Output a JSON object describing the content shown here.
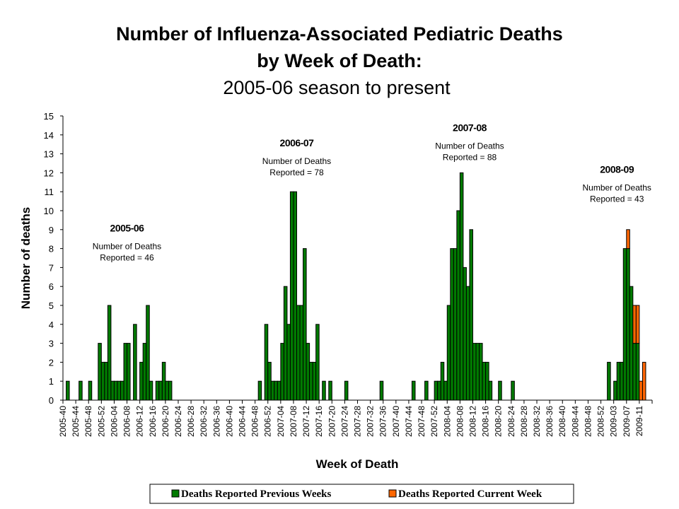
{
  "chart_data": {
    "type": "bar",
    "stacked": true,
    "title": [
      "Number of Influenza-Associated Pediatric Deaths",
      "by Week of Death:",
      "2005-06 season to present"
    ],
    "xlabel": "Week of Death",
    "ylabel": "Number of deaths",
    "ylim": [
      0,
      15
    ],
    "yticks": [
      0,
      1,
      2,
      3,
      4,
      5,
      6,
      7,
      8,
      9,
      10,
      11,
      12,
      13,
      14,
      15
    ],
    "grid": false,
    "legend_position": "bottom",
    "x_start_week": "2005-40",
    "week_count": 184,
    "week_index_note": "index 0 = 2005-40; 2008 has week 53",
    "tick_labels": [
      "2005-40",
      "2005-44",
      "2005-48",
      "2005-52",
      "2006-04",
      "2006-08",
      "2006-12",
      "2006-16",
      "2006-20",
      "2006-24",
      "2006-28",
      "2006-32",
      "2006-36",
      "2006-40",
      "2006-44",
      "2006-48",
      "2006-52",
      "2007-04",
      "2007-08",
      "2007-12",
      "2007-16",
      "2007-20",
      "2007-24",
      "2007-28",
      "2007-32",
      "2007-36",
      "2007-40",
      "2007-44",
      "2007-48",
      "2007-52",
      "2008-04",
      "2008-08",
      "2008-12",
      "2008-16",
      "2008-20",
      "2008-24",
      "2008-28",
      "2008-32",
      "2008-36",
      "2008-40",
      "2008-44",
      "2008-48",
      "2008-52",
      "2009-03",
      "2009-07",
      "2009-11"
    ],
    "series": [
      {
        "name": "Deaths Reported Previous Weeks",
        "color": "#007A00",
        "points": [
          {
            "week": "2005-41",
            "idx": 1,
            "value": 1
          },
          {
            "week": "2005-45",
            "idx": 5,
            "value": 1
          },
          {
            "week": "2005-48",
            "idx": 8,
            "value": 1
          },
          {
            "week": "2005-51",
            "idx": 11,
            "value": 3
          },
          {
            "week": "2005-52",
            "idx": 12,
            "value": 2
          },
          {
            "week": "2006-01",
            "idx": 13,
            "value": 2
          },
          {
            "week": "2006-02",
            "idx": 14,
            "value": 5
          },
          {
            "week": "2006-03",
            "idx": 15,
            "value": 1
          },
          {
            "week": "2006-04",
            "idx": 16,
            "value": 1
          },
          {
            "week": "2006-05",
            "idx": 17,
            "value": 1
          },
          {
            "week": "2006-06",
            "idx": 18,
            "value": 1
          },
          {
            "week": "2006-07",
            "idx": 19,
            "value": 3
          },
          {
            "week": "2006-08",
            "idx": 20,
            "value": 3
          },
          {
            "week": "2006-10",
            "idx": 22,
            "value": 4
          },
          {
            "week": "2006-12",
            "idx": 24,
            "value": 2
          },
          {
            "week": "2006-13",
            "idx": 25,
            "value": 3
          },
          {
            "week": "2006-14",
            "idx": 26,
            "value": 5
          },
          {
            "week": "2006-15",
            "idx": 27,
            "value": 1
          },
          {
            "week": "2006-17",
            "idx": 29,
            "value": 1
          },
          {
            "week": "2006-18",
            "idx": 30,
            "value": 1
          },
          {
            "week": "2006-19",
            "idx": 31,
            "value": 2
          },
          {
            "week": "2006-20",
            "idx": 32,
            "value": 1
          },
          {
            "week": "2006-21",
            "idx": 33,
            "value": 1
          },
          {
            "week": "2006-49",
            "idx": 61,
            "value": 1
          },
          {
            "week": "2006-51",
            "idx": 63,
            "value": 4
          },
          {
            "week": "2006-52",
            "idx": 64,
            "value": 2
          },
          {
            "week": "2007-01",
            "idx": 65,
            "value": 1
          },
          {
            "week": "2007-02",
            "idx": 66,
            "value": 1
          },
          {
            "week": "2007-03",
            "idx": 67,
            "value": 1
          },
          {
            "week": "2007-04",
            "idx": 68,
            "value": 3
          },
          {
            "week": "2007-05",
            "idx": 69,
            "value": 6
          },
          {
            "week": "2007-06",
            "idx": 70,
            "value": 4
          },
          {
            "week": "2007-07",
            "idx": 71,
            "value": 11
          },
          {
            "week": "2007-08",
            "idx": 72,
            "value": 11
          },
          {
            "week": "2007-09",
            "idx": 73,
            "value": 5
          },
          {
            "week": "2007-10",
            "idx": 74,
            "value": 5
          },
          {
            "week": "2007-11",
            "idx": 75,
            "value": 8
          },
          {
            "week": "2007-12",
            "idx": 76,
            "value": 3
          },
          {
            "week": "2007-13",
            "idx": 77,
            "value": 2
          },
          {
            "week": "2007-14",
            "idx": 78,
            "value": 2
          },
          {
            "week": "2007-15",
            "idx": 79,
            "value": 4
          },
          {
            "week": "2007-17",
            "idx": 81,
            "value": 1
          },
          {
            "week": "2007-19",
            "idx": 83,
            "value": 1
          },
          {
            "week": "2007-24",
            "idx": 88,
            "value": 1
          },
          {
            "week": "2007-35",
            "idx": 99,
            "value": 1
          },
          {
            "week": "2007-45",
            "idx": 109,
            "value": 1
          },
          {
            "week": "2007-49",
            "idx": 113,
            "value": 1
          },
          {
            "week": "2007-52",
            "idx": 116,
            "value": 1
          },
          {
            "week": "2008-01",
            "idx": 117,
            "value": 1
          },
          {
            "week": "2008-02",
            "idx": 118,
            "value": 2
          },
          {
            "week": "2008-03",
            "idx": 119,
            "value": 1
          },
          {
            "week": "2008-04",
            "idx": 120,
            "value": 5
          },
          {
            "week": "2008-05",
            "idx": 121,
            "value": 8
          },
          {
            "week": "2008-06",
            "idx": 122,
            "value": 8
          },
          {
            "week": "2008-07",
            "idx": 123,
            "value": 10
          },
          {
            "week": "2008-08",
            "idx": 124,
            "value": 12
          },
          {
            "week": "2008-09",
            "idx": 125,
            "value": 7
          },
          {
            "week": "2008-10",
            "idx": 126,
            "value": 6
          },
          {
            "week": "2008-11",
            "idx": 127,
            "value": 9
          },
          {
            "week": "2008-12",
            "idx": 128,
            "value": 3
          },
          {
            "week": "2008-13",
            "idx": 129,
            "value": 3
          },
          {
            "week": "2008-14",
            "idx": 130,
            "value": 3
          },
          {
            "week": "2008-15",
            "idx": 131,
            "value": 2
          },
          {
            "week": "2008-16",
            "idx": 132,
            "value": 2
          },
          {
            "week": "2008-17",
            "idx": 133,
            "value": 1
          },
          {
            "week": "2008-20",
            "idx": 136,
            "value": 1
          },
          {
            "week": "2008-24",
            "idx": 140,
            "value": 1
          },
          {
            "week": "2009-01",
            "idx": 170,
            "value": 2
          },
          {
            "week": "2009-03",
            "idx": 172,
            "value": 1
          },
          {
            "week": "2009-04",
            "idx": 173,
            "value": 2
          },
          {
            "week": "2009-05",
            "idx": 174,
            "value": 2
          },
          {
            "week": "2009-06",
            "idx": 175,
            "value": 8
          },
          {
            "week": "2009-07",
            "idx": 176,
            "value": 8
          },
          {
            "week": "2009-08",
            "idx": 177,
            "value": 6
          },
          {
            "week": "2009-09",
            "idx": 178,
            "value": 3
          },
          {
            "week": "2009-10",
            "idx": 179,
            "value": 3
          }
        ]
      },
      {
        "name": "Deaths Reported Current Week",
        "color": "#FF6600",
        "points": [
          {
            "week": "2009-07",
            "idx": 176,
            "value": 1
          },
          {
            "week": "2009-09",
            "idx": 178,
            "value": 2
          },
          {
            "week": "2009-10",
            "idx": 179,
            "value": 2
          },
          {
            "week": "2009-11",
            "idx": 180,
            "value": 1
          },
          {
            "week": "2009-12",
            "idx": 181,
            "value": 2
          }
        ]
      }
    ],
    "annotations": [
      {
        "season": "2005-06",
        "label": "Number of Deaths",
        "line2": "Reported = 46",
        "total": 46,
        "anchor_idx": 20,
        "anchor_value": 8.9
      },
      {
        "season": "2006-07",
        "label": "Number of Deaths",
        "line2": "Reported = 78",
        "total": 78,
        "anchor_idx": 73,
        "anchor_value": 13.4
      },
      {
        "season": "2007-08",
        "label": "Number of Deaths",
        "line2": "Reported = 88",
        "total": 88,
        "anchor_idx": 127,
        "anchor_value": 14.2
      },
      {
        "season": "2008-09",
        "label": "Number of Deaths",
        "line2": "Reported = 43",
        "total": 43,
        "anchor_idx": 173,
        "anchor_value": 12.0
      }
    ]
  }
}
